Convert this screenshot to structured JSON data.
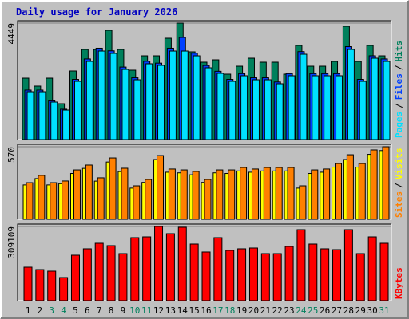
{
  "chart_data": [
    {
      "type": "bar",
      "title": "Daily usage for January 2026",
      "legend_separator": "/",
      "ylim": [
        0,
        4449
      ],
      "yticks": [
        4449
      ],
      "series": [
        {
          "name": "Hits",
          "color": "#00805c",
          "values": [
            2346,
            2042,
            2346,
            1371,
            2621,
            3443,
            3443,
            4174,
            3443,
            2651,
            3199,
            3199,
            3870,
            4449,
            3352,
            2956,
            3047,
            2499,
            2803,
            3108,
            2956,
            2956,
            2499,
            3596,
            2803,
            2803,
            2986,
            4327,
            2986,
            3596,
            3199
          ]
        },
        {
          "name": "Files",
          "color": "#0040ff",
          "values": [
            1890,
            1890,
            1480,
            1160,
            2300,
            3080,
            3490,
            3390,
            2770,
            2360,
            2990,
            2920,
            3490,
            3900,
            3300,
            2830,
            2610,
            2300,
            2520,
            2360,
            2360,
            2200,
            2520,
            3360,
            2520,
            2520,
            2520,
            3550,
            2300,
            3200,
            3080
          ]
        },
        {
          "name": "Pages",
          "color": "#00e0ff",
          "values": [
            1828,
            1828,
            1432,
            1127,
            2224,
            2986,
            3382,
            3291,
            2681,
            2285,
            2895,
            2834,
            3382,
            3382,
            3199,
            2742,
            2529,
            2224,
            2438,
            2285,
            2285,
            2133,
            2438,
            3260,
            2438,
            2438,
            2438,
            3443,
            2224,
            3108,
            2986
          ]
        }
      ]
    },
    {
      "type": "bar",
      "legend_separator": "/",
      "ylim": [
        0,
        570
      ],
      "yticks": [
        570
      ],
      "series": [
        {
          "name": "Visits",
          "color": "#ffff00",
          "values": [
            270,
            320,
            270,
            280,
            360,
            400,
            300,
            450,
            375,
            245,
            290,
            470,
            370,
            365,
            350,
            290,
            365,
            360,
            380,
            370,
            380,
            380,
            380,
            245,
            360,
            370,
            410,
            470,
            410,
            510,
            540
          ]
        },
        {
          "name": "Sites",
          "color": "#ff8000",
          "values": [
            288,
            345,
            288,
            301,
            388,
            426,
            326,
            482,
            401,
            263,
            313,
            501,
            395,
            388,
            376,
            313,
            388,
            388,
            407,
            395,
            407,
            407,
            407,
            263,
            388,
            395,
            438,
            507,
            438,
            545,
            570
          ]
        }
      ]
    },
    {
      "type": "bar",
      "ylim": [
        0,
        309109
      ],
      "yticks": [
        309109
      ],
      "categories": [
        "1",
        "2",
        "3",
        "4",
        "5",
        "6",
        "7",
        "8",
        "9",
        "10",
        "11",
        "12",
        "13",
        "14",
        "15",
        "16",
        "17",
        "18",
        "19",
        "20",
        "21",
        "22",
        "23",
        "24",
        "25",
        "26",
        "27",
        "28",
        "29",
        "30",
        "31"
      ],
      "category_colors": [
        "#000000",
        "#000000",
        "#00805c",
        "#00805c",
        "#000000",
        "#000000",
        "#000000",
        "#000000",
        "#000000",
        "#00805c",
        "#00805c",
        "#000000",
        "#000000",
        "#000000",
        "#000000",
        "#000000",
        "#00805c",
        "#00805c",
        "#000000",
        "#000000",
        "#000000",
        "#000000",
        "#000000",
        "#00805c",
        "#00805c",
        "#000000",
        "#000000",
        "#000000",
        "#000000",
        "#000000",
        "#00805c"
      ],
      "series": [
        {
          "name": "KBytes",
          "color": "#ff0000",
          "values": [
            139600,
            129600,
            123000,
            96400,
            189500,
            216100,
            239300,
            229400,
            196100,
            262600,
            265900,
            309109,
            279200,
            305800,
            236000,
            202800,
            262600,
            209400,
            216100,
            219400,
            196100,
            196100,
            226000,
            295800,
            236000,
            216100,
            212700,
            295800,
            196100,
            265900,
            239300
          ]
        }
      ]
    }
  ]
}
